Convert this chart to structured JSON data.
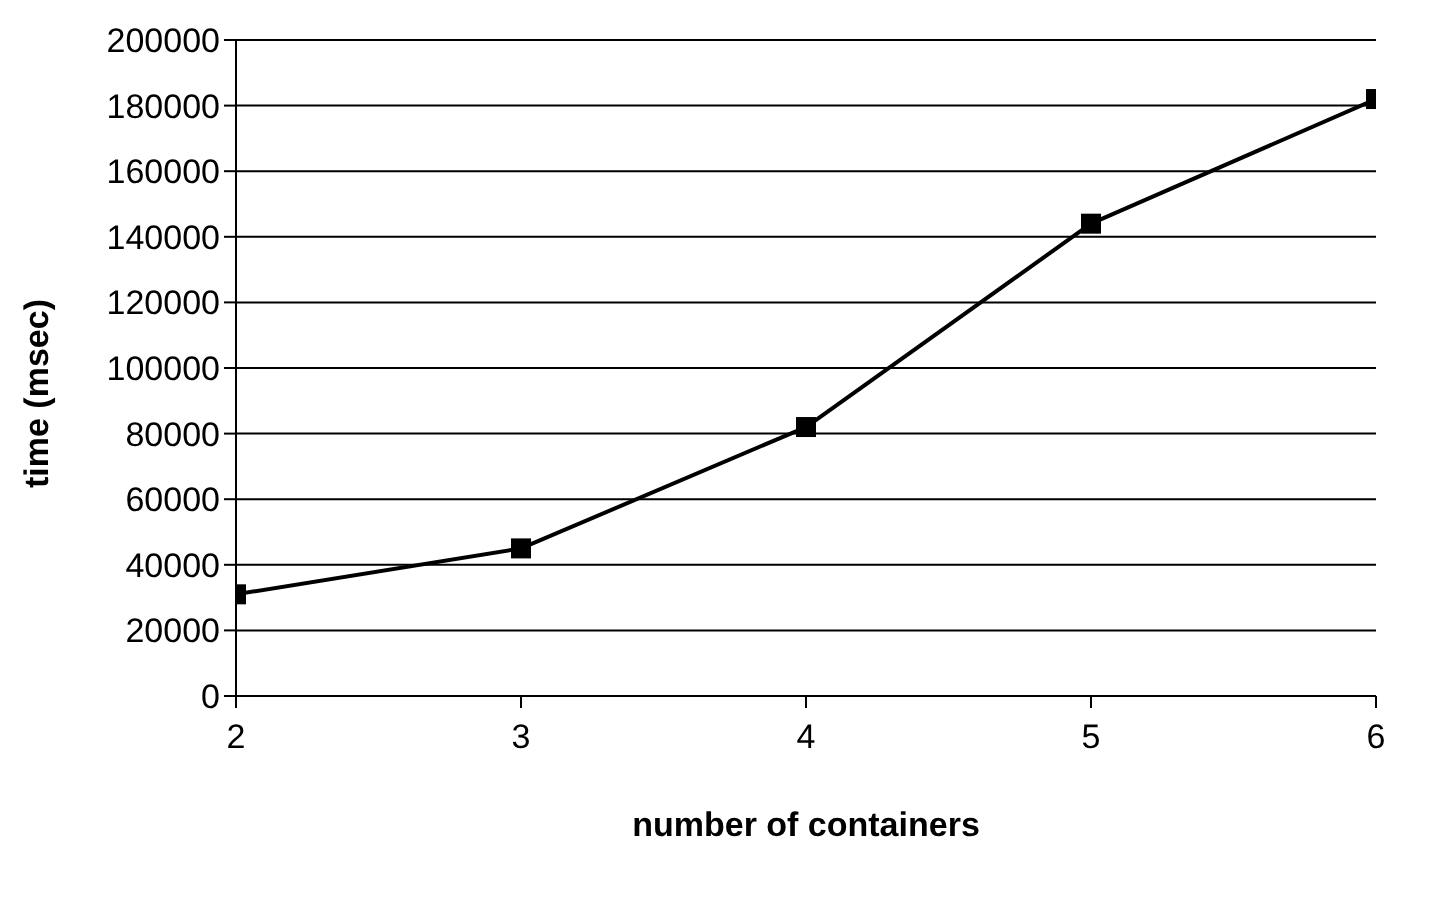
{
  "chart_data": {
    "type": "line",
    "xlabel": "number of containers",
    "ylabel": "time (msec)",
    "x": [
      2,
      3,
      4,
      5,
      6
    ],
    "series": [
      {
        "color": "#000000",
        "values": [
          31000,
          45000,
          82000,
          144000,
          182000
        ]
      }
    ],
    "xlim": [
      2,
      6
    ],
    "xticks": [
      2,
      3,
      4,
      5,
      6
    ],
    "ylim": [
      0,
      200000
    ],
    "yticks": [
      0,
      20000,
      40000,
      60000,
      80000,
      100000,
      120000,
      140000,
      160000,
      180000,
      200000
    ],
    "grid": "y",
    "legend": false,
    "marker": "square",
    "line_style": "solid"
  }
}
